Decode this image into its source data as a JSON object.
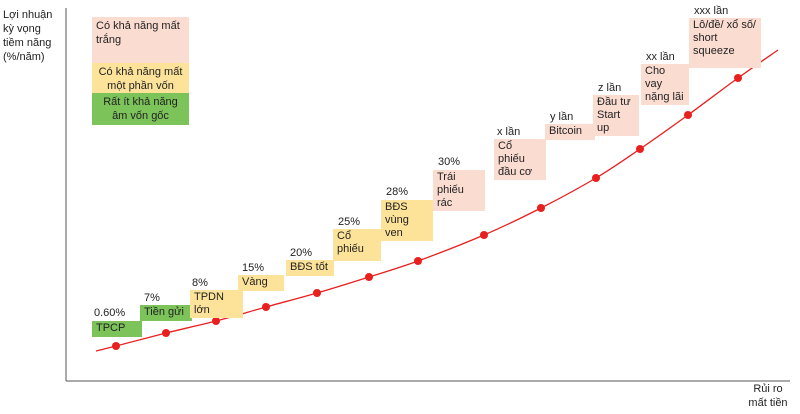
{
  "chart_data": {
    "type": "scatter",
    "ylabel": "Lợi nhuận\nkỳ vọng\ntiềm năng\n(%/năm)",
    "xlabel": "Rủi ro\nmất tiền",
    "colors": {
      "green": "#7cc35a",
      "yellow": "#fde39a",
      "pink": "#fbdcd1",
      "curve": "#e8201e",
      "axis": "#555555"
    },
    "legend": [
      {
        "label": "Có khả năng mất trắng",
        "color": "pink"
      },
      {
        "label": "Có khả năng mất một phần vốn",
        "color": "yellow"
      },
      {
        "label": "Rất ít khả năng âm vốn gốc",
        "color": "green"
      }
    ],
    "points": [
      {
        "value": "0.60%",
        "name": "TPCP",
        "color": "green",
        "risk": 1,
        "return": 0.6
      },
      {
        "value": "7%",
        "name": "Tiền gửi",
        "color": "green",
        "risk": 2,
        "return": 7
      },
      {
        "value": "8%",
        "name": "TPDN lớn",
        "color": "yellow",
        "risk": 3,
        "return": 8
      },
      {
        "value": "15%",
        "name": "Vàng",
        "color": "yellow",
        "risk": 4,
        "return": 15
      },
      {
        "value": "20%",
        "name": "BĐS tốt",
        "color": "yellow",
        "risk": 5,
        "return": 20
      },
      {
        "value": "25%",
        "name": "Cổ phiếu",
        "color": "yellow",
        "risk": 6,
        "return": 25
      },
      {
        "value": "28%",
        "name": "BĐS vùng ven",
        "color": "yellow",
        "risk": 7,
        "return": 28
      },
      {
        "value": "30%",
        "name": "Trái phiếu rác",
        "color": "pink",
        "risk": 8,
        "return": 30
      },
      {
        "value": "x lần",
        "name": "Cổ phiếu đầu cơ",
        "color": "pink",
        "risk": 9,
        "return": null
      },
      {
        "value": "y lần",
        "name": "Bitcoin",
        "color": "pink",
        "risk": 10,
        "return": null
      },
      {
        "value": "z lần",
        "name": "Đầu tư Start up",
        "color": "pink",
        "risk": 11,
        "return": null
      },
      {
        "value": "xx lần",
        "name": "Cho vay nặng lãi",
        "color": "pink",
        "risk": 12,
        "return": null
      },
      {
        "value": "xxx lần",
        "name": "Lô/đề/ xổ số/ short squeeze",
        "color": "pink",
        "risk": 13,
        "return": null
      }
    ]
  }
}
